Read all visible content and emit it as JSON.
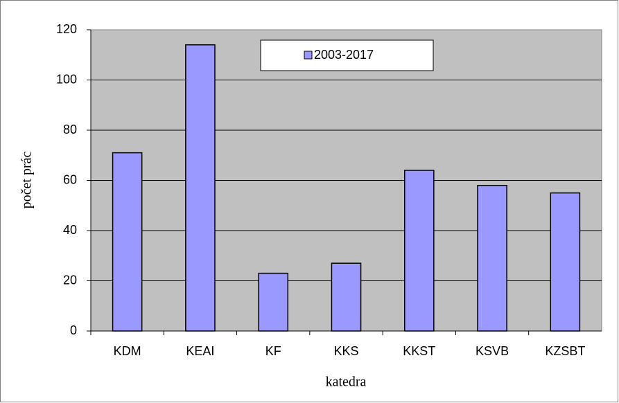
{
  "chart_data": {
    "type": "bar",
    "categories": [
      "KDM",
      "KEAI",
      "KF",
      "KKS",
      "KKST",
      "KSVB",
      "KZSBT"
    ],
    "series": [
      {
        "name": "2003-2017",
        "color": "#9999ff",
        "values": [
          71,
          114,
          23,
          27,
          64,
          58,
          55
        ]
      }
    ],
    "x_label": "katedra",
    "y_label": "počet prác",
    "ylim": [
      0,
      120
    ],
    "yticks": [
      0,
      20,
      40,
      60,
      80,
      100,
      120
    ],
    "grid": true,
    "legend": "top"
  }
}
